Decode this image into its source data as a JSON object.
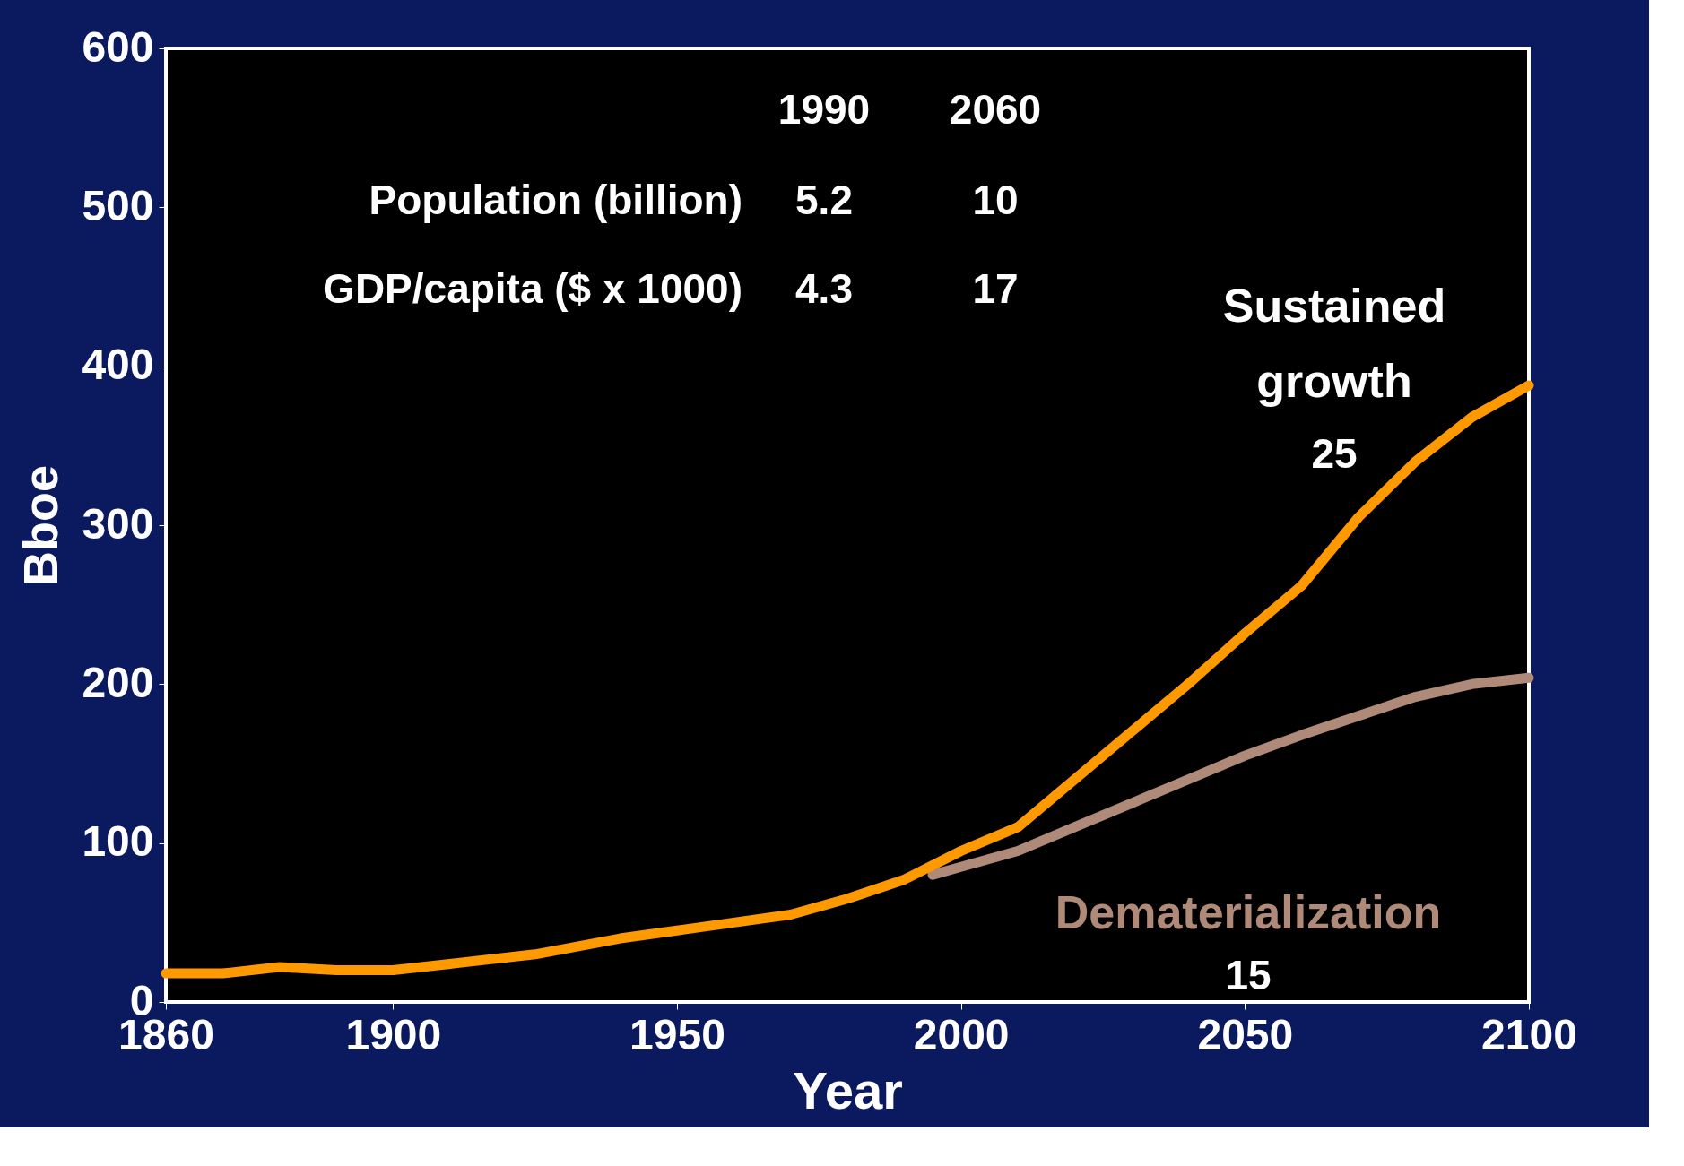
{
  "chart_data": {
    "type": "line",
    "xlabel": "Year",
    "ylabel": "Bboe",
    "xlim": [
      1860,
      2100
    ],
    "xticks": [
      1860,
      1900,
      1950,
      2000,
      2050,
      2100
    ],
    "ylim": [
      0,
      600
    ],
    "yticks": [
      0,
      100,
      200,
      300,
      400,
      500,
      600
    ],
    "grid": false,
    "line_style": "solid",
    "marker": "none",
    "series": [
      {
        "name": "Dematerialization",
        "color": "#b08a78",
        "x": [
          1995,
          2000,
          2010,
          2020,
          2030,
          2040,
          2050,
          2060,
          2070,
          2080,
          2090,
          2100
        ],
        "values": [
          80,
          85,
          95,
          110,
          125,
          140,
          155,
          168,
          180,
          192,
          200,
          204
        ]
      },
      {
        "name": "Sustained growth",
        "color": "#ff9900",
        "x": [
          1860,
          1870,
          1880,
          1890,
          1900,
          1910,
          1925,
          1940,
          1950,
          1960,
          1970,
          1980,
          1990,
          2000,
          2010,
          2020,
          2030,
          2040,
          2050,
          2060,
          2070,
          2080,
          2090,
          2100
        ],
        "values": [
          18,
          18,
          22,
          20,
          20,
          24,
          30,
          40,
          45,
          50,
          55,
          65,
          77,
          95,
          110,
          140,
          170,
          200,
          232,
          262,
          305,
          340,
          368,
          388
        ]
      }
    ],
    "annotations": [
      "1990",
      "2060",
      "Population (billion)",
      "5.2",
      "10",
      "GDP/capita ($ x 1000)",
      "4.3",
      "17",
      "15",
      "25"
    ]
  }
}
